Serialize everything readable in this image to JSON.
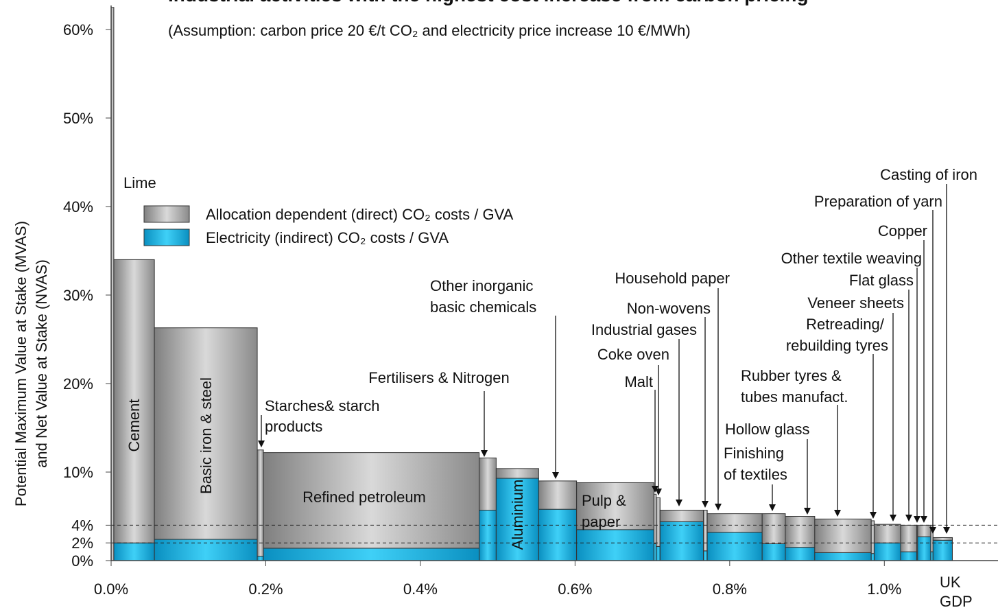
{
  "chart_data": {
    "type": "variable-width-stacked-bar",
    "title": "Industrial activities with the highest cost increase from carbon pricing",
    "subtitle": "(Assumption: carbon price 20 €/t CO₂ and electricity price increase 10 €/MWh)",
    "y_label": [
      "Potential Maximum Value at Stake (MVAS)",
      "and Net Value at Stake (NVAS)"
    ],
    "end_label": "UK GDP",
    "categories": [
      "Lime",
      "Cement",
      "Basic iron & steel",
      "Starches& starch products",
      "Refined petroleum",
      "Fertilisers & Nitrogen",
      "Aluminium",
      "Other inorganic basic chemicals",
      "Pulp & paper",
      "Malt",
      "Coke oven",
      "Industrial gases",
      "Non-wovens",
      "Household  paper",
      "Finishing of textiles",
      "Hollow glass",
      "Rubber tyres & tubes manufact.",
      "Retreading/ rebuilding tyres",
      "Veneer sheets",
      "Flat glass",
      "Other textile weaving",
      "Copper",
      "Preparation of yarn",
      "Casting of iron"
    ],
    "x_edges": [
      0,
      0.0035,
      0.056,
      0.189,
      0.197,
      0.476,
      0.498,
      0.553,
      0.602,
      0.702,
      0.705,
      0.71,
      0.766,
      0.771,
      0.842,
      0.872,
      0.91,
      0.983,
      0.987,
      1.021,
      1.042,
      1.043,
      1.06,
      1.063,
      1.088
    ],
    "series": [
      {
        "name": "Electricity (indirect) CO₂ costs / GVA",
        "color": "#19b4e3",
        "values": [
          0,
          2,
          2.4,
          0.5,
          1.4,
          5.7,
          9.3,
          5.8,
          3.5,
          1.9,
          1.6,
          4.4,
          1.1,
          3.2,
          1.9,
          1.5,
          0.9,
          0.8,
          2.0,
          1.0,
          1.0,
          2.7,
          1.0,
          2.3
        ]
      },
      {
        "name": "Allocation dependent (direct) CO₂ costs / GVA",
        "color": "#a6a6a6",
        "values": [
          62.5,
          32,
          23.9,
          12,
          10.8,
          5.9,
          1.1,
          3.2,
          5.3,
          5.6,
          5.5,
          1.3,
          4.6,
          2.1,
          3.4,
          3.5,
          3.8,
          3.7,
          2.1,
          3.0,
          3.0,
          1.3,
          3.0,
          0.3
        ]
      }
    ],
    "xlim": [
      0,
      1.147
    ],
    "ylim": [
      0,
      63
    ],
    "xticks": [
      {
        "value": 0,
        "label": "0.0%"
      },
      {
        "value": 0.2,
        "label": "0.2%"
      },
      {
        "value": 0.4,
        "label": "0.4%"
      },
      {
        "value": 0.6,
        "label": "0.6%"
      },
      {
        "value": 0.8,
        "label": "0.8%"
      },
      {
        "value": 1.0,
        "label": "1.0%"
      }
    ],
    "yticks": [
      {
        "value": 0,
        "label": "0%"
      },
      {
        "value": 2,
        "label": "2%"
      },
      {
        "value": 4,
        "label": "4%"
      },
      {
        "value": 10,
        "label": "10%"
      },
      {
        "value": 20,
        "label": "20%"
      },
      {
        "value": 30,
        "label": "30%"
      },
      {
        "value": 40,
        "label": "40%"
      },
      {
        "value": 50,
        "label": "50%"
      },
      {
        "value": 60,
        "label": "60%"
      }
    ],
    "reference_lines": [
      2,
      4
    ]
  }
}
